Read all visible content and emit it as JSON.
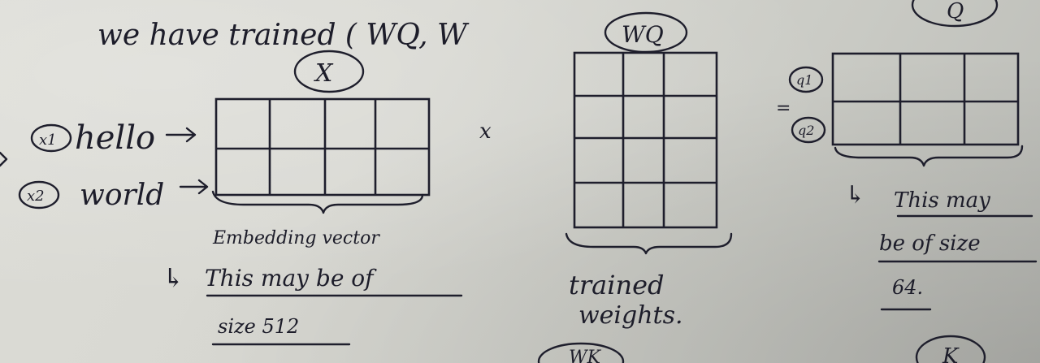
{
  "header_note": "we have trained ( WQ, W",
  "ellipse_labels": {
    "x": "X",
    "wq": "WQ",
    "q": "Q",
    "k": "K",
    "bottom_partial": "WK"
  },
  "rows": [
    {
      "badge": "x1",
      "word": "hello"
    },
    {
      "badge": "x2",
      "word": "world"
    }
  ],
  "multiply_sign": "x",
  "equals_sign": "=",
  "q_rows": [
    "q1",
    "q2"
  ],
  "embedding": {
    "caption": "Embedding vector",
    "note_line1": "This may be of",
    "note_line2": "size 512"
  },
  "weights": {
    "line1": "trained",
    "line2": "weights."
  },
  "query": {
    "note_line1": "This may",
    "note_line2": "be of size",
    "note_line3": "64."
  },
  "arrow_glyph": "↳",
  "ink_color": "#1e1e2c"
}
